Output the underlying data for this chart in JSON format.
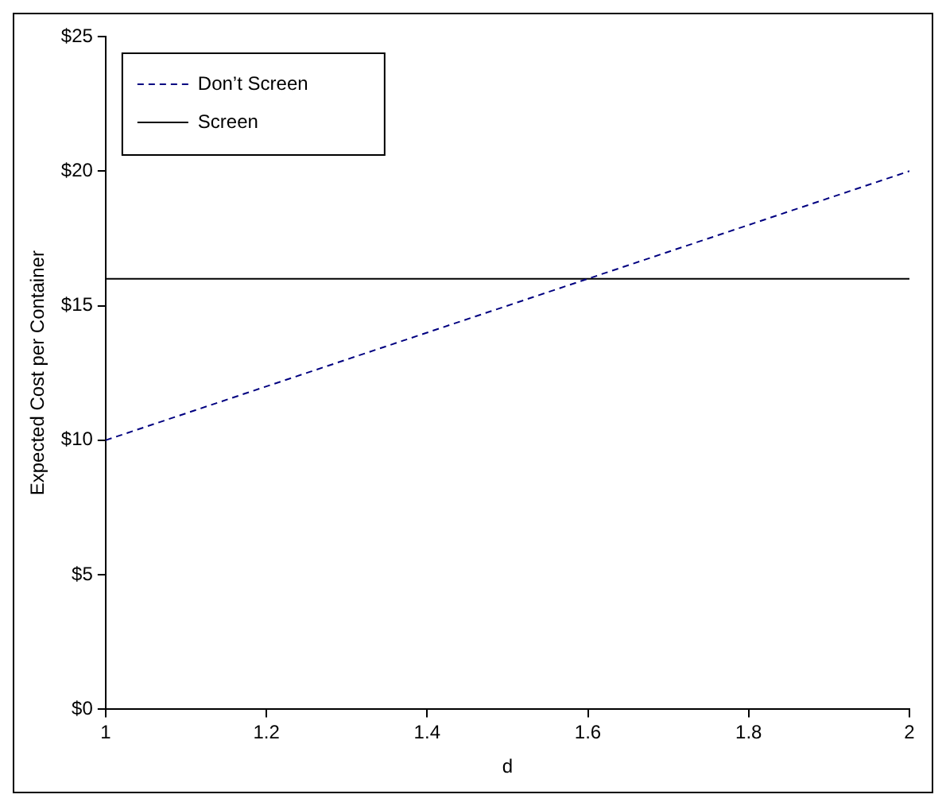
{
  "chart_data": {
    "type": "line",
    "xlabel": "d",
    "ylabel": "Expected Cost per Container",
    "x": [
      1,
      2
    ],
    "series": [
      {
        "name": "Don’t Screen",
        "color": "#000080",
        "values": [
          10,
          20
        ],
        "line_style": "dashed"
      },
      {
        "name": "Screen",
        "color": "#000000",
        "values": [
          16,
          16
        ],
        "line_style": "solid"
      }
    ],
    "xlim": [
      1,
      2
    ],
    "xticks": [
      1,
      1.2,
      1.4,
      1.6,
      1.8,
      2
    ],
    "ylim": [
      0,
      25
    ],
    "yticks": [
      {
        "value": 0,
        "label": "$0"
      },
      {
        "value": 5,
        "label": "$5"
      },
      {
        "value": 10,
        "label": "$10"
      },
      {
        "value": 15,
        "label": "$15"
      },
      {
        "value": 20,
        "label": "$20"
      },
      {
        "value": 25,
        "label": "$25"
      }
    ],
    "grid": false,
    "legend": "top left",
    "marker": "none"
  }
}
